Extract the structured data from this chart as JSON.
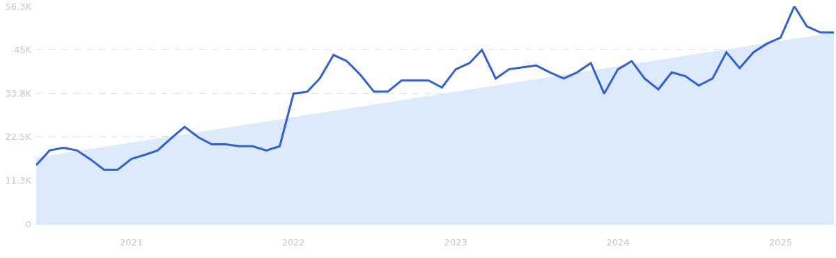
{
  "chart_data": {
    "type": "line",
    "x": [
      "2020-06",
      "2020-07",
      "2020-08",
      "2020-09",
      "2020-10",
      "2020-11",
      "2020-12",
      "2021-01",
      "2021-02",
      "2021-03",
      "2021-04",
      "2021-05",
      "2021-06",
      "2021-07",
      "2021-08",
      "2021-09",
      "2021-10",
      "2021-11",
      "2021-12",
      "2022-01",
      "2022-02",
      "2022-03",
      "2022-04",
      "2022-05",
      "2022-06",
      "2022-07",
      "2022-08",
      "2022-09",
      "2022-10",
      "2022-11",
      "2022-12",
      "2023-01",
      "2023-02",
      "2023-03",
      "2023-04",
      "2023-05",
      "2023-06",
      "2023-07",
      "2023-08",
      "2023-09",
      "2023-10",
      "2023-11",
      "2023-12",
      "2024-01",
      "2024-02",
      "2024-03",
      "2024-04",
      "2024-05",
      "2024-06",
      "2024-07",
      "2024-08",
      "2024-09",
      "2024-10",
      "2024-11",
      "2024-12",
      "2025-01",
      "2025-02",
      "2025-03",
      "2025-04",
      "2025-05"
    ],
    "series": [
      {
        "type": "area",
        "color": "#dceafb",
        "x": [
          "2020-06",
          "2025-05"
        ],
        "values": [
          17200,
          49500
        ]
      },
      {
        "color": "#2d5fe0",
        "values": [
          15200,
          19000,
          19700,
          19000,
          16700,
          14000,
          14000,
          16800,
          17900,
          19000,
          22200,
          25100,
          22400,
          20600,
          20600,
          20100,
          20100,
          19000,
          20100,
          33700,
          34200,
          37600,
          43700,
          42100,
          38500,
          34200,
          34200,
          37100,
          37100,
          37100,
          35300,
          40000,
          41600,
          45000,
          37600,
          40000,
          40500,
          41000,
          39200,
          37600,
          39200,
          41600,
          33700,
          40000,
          42100,
          37600,
          34800,
          39200,
          38200,
          35800,
          37600,
          44400,
          40300,
          44400,
          46600,
          48200,
          56300,
          51100,
          49500,
          49500
        ]
      }
    ],
    "xlim": [
      "2020-06",
      "2025-05"
    ],
    "xticks": [
      {
        "value": "2021-01",
        "label": "2021"
      },
      {
        "value": "2022-01",
        "label": "2022"
      },
      {
        "value": "2023-01",
        "label": "2023"
      },
      {
        "value": "2024-01",
        "label": "2024"
      },
      {
        "value": "2025-01",
        "label": "2025"
      }
    ],
    "ylim": [
      0,
      56300
    ],
    "yticks": [
      0,
      {
        "value": 11300,
        "label": "11.3K"
      },
      {
        "value": 22500,
        "label": "22.5K"
      },
      {
        "value": 33800,
        "label": "33.8K"
      },
      {
        "value": 45000,
        "label": "45K"
      },
      {
        "value": 56300,
        "label": "56.3K"
      }
    ],
    "grid": "y",
    "marker": "none",
    "line_style": "solid"
  }
}
